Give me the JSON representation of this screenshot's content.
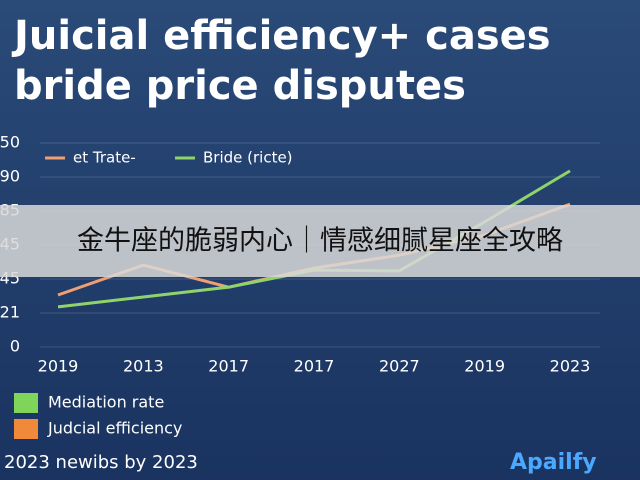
{
  "chart_data": {
    "type": "line",
    "title": [
      "Juicial efficiency+ cases",
      "bride price disputes"
    ],
    "categories": [
      "2019",
      "2013",
      "2017",
      "2017",
      "2027",
      "2019",
      "2023"
    ],
    "series": [
      {
        "name": "et Trate-",
        "color": "#f0a070",
        "values": [
          1.53,
          2.41,
          1.76,
          2.32,
          2.7,
          3.29,
          4.2
        ]
      },
      {
        "name": "Bride (ricte)",
        "color": "#8fd46a",
        "values": [
          1.18,
          1.47,
          1.76,
          2.26,
          2.24,
          3.68,
          5.18
        ]
      }
    ],
    "ylim": [
      0,
      6
    ],
    "yticks": [
      {
        "value": 0,
        "label": "0"
      },
      {
        "value": 1,
        "label": "21"
      },
      {
        "value": 2,
        "label": "45"
      },
      {
        "value": 3,
        "label": "45"
      },
      {
        "value": 4,
        "label": "85"
      },
      {
        "value": 5,
        "label": "90"
      },
      {
        "value": 6,
        "label": "50"
      }
    ],
    "grid": true,
    "bottom_legend": [
      {
        "name": "Mediation rate",
        "color": "#7fd45a"
      },
      {
        "name": "Judcial efficiency",
        "color": "#f08a3a"
      }
    ],
    "footer": "2023 newibs by 2023",
    "logo": "Apailfy",
    "banner": "金牛座的脆弱内心｜情感细腻星座全攻略"
  }
}
